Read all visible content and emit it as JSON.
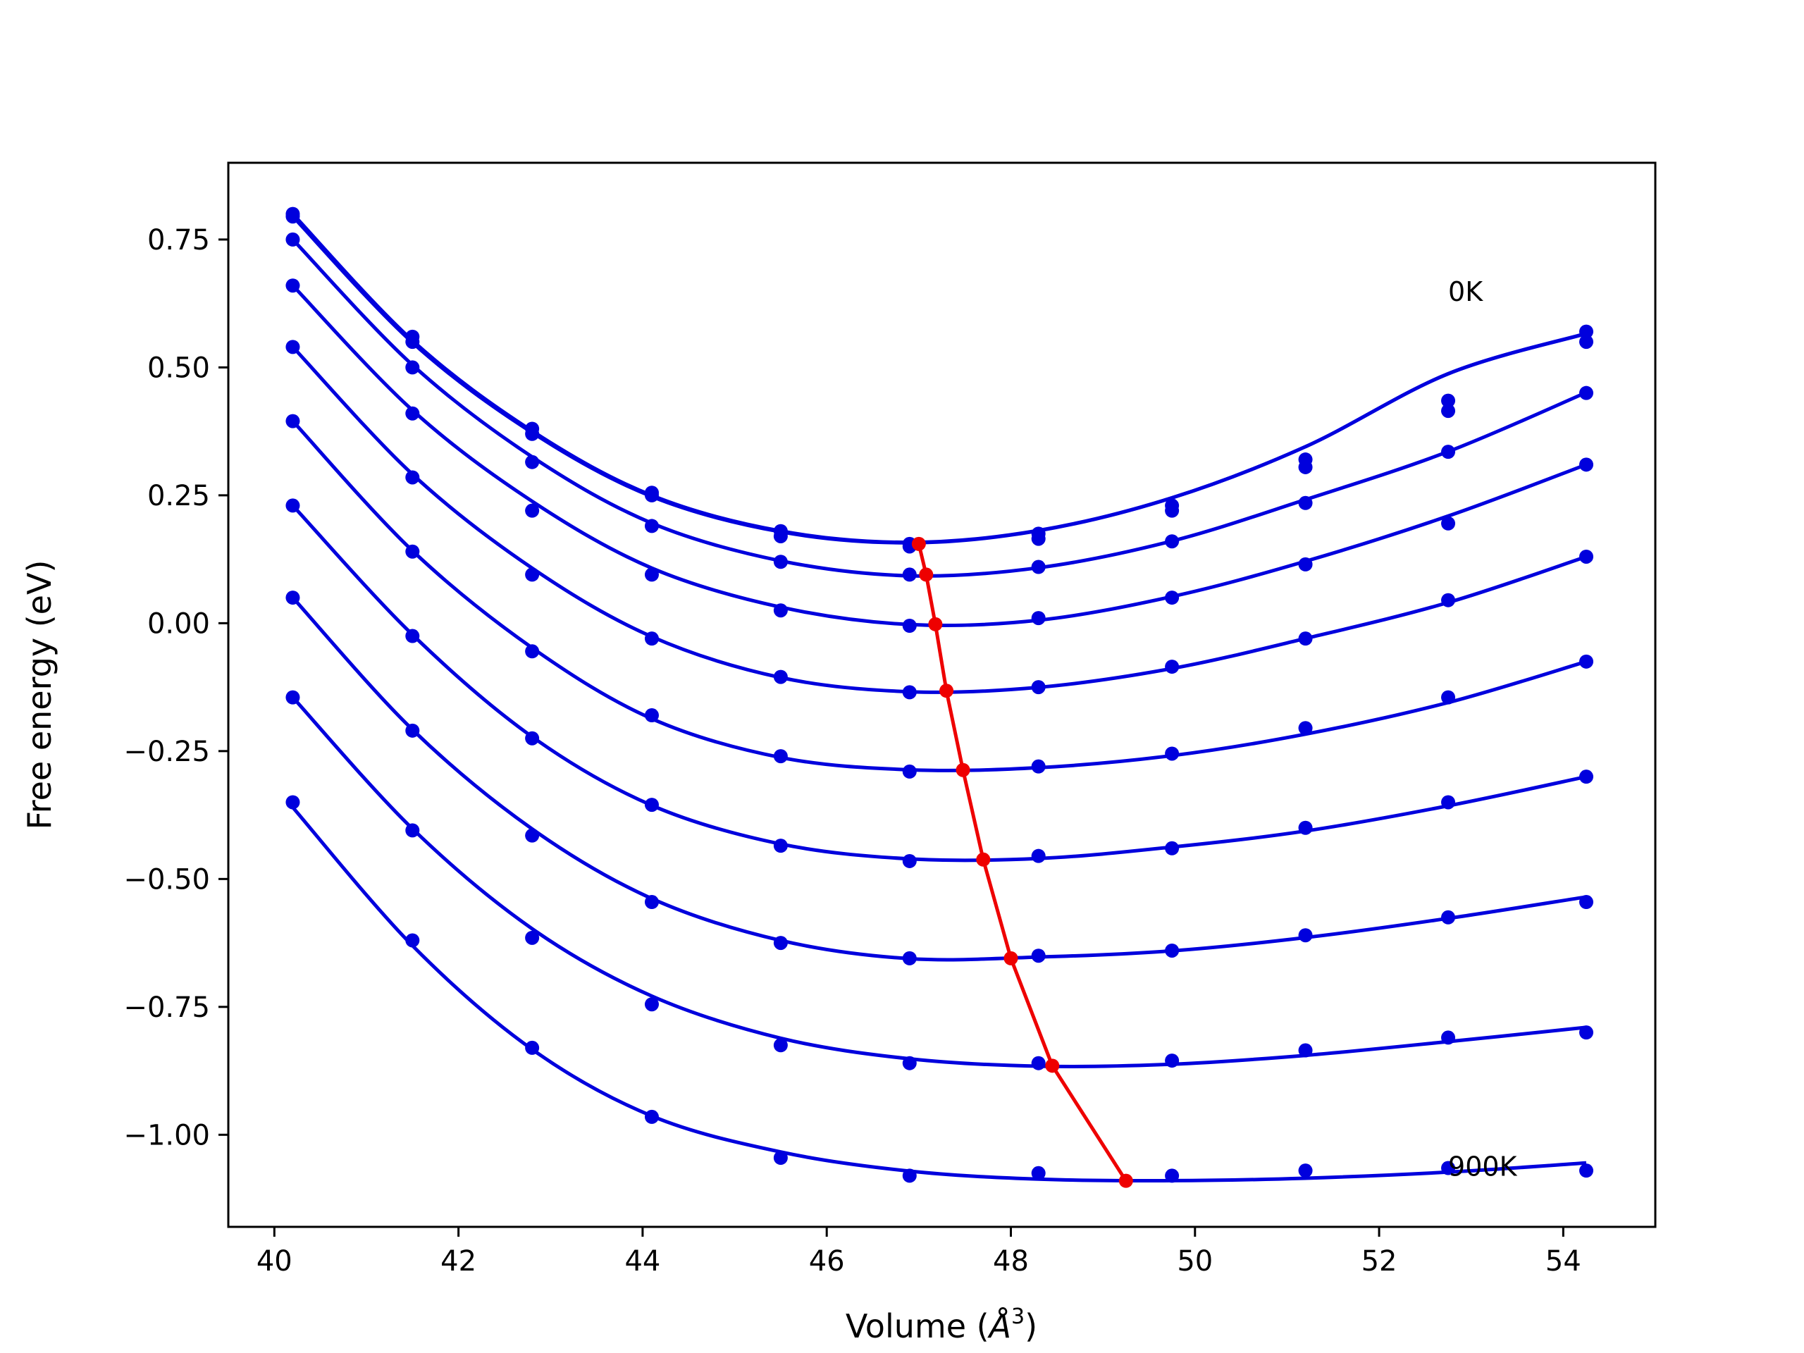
{
  "colors": {
    "series": "#0000dd",
    "minima": "#ee0000",
    "axes": "#000000",
    "background": "#ffffff"
  },
  "chart_data": {
    "type": "line",
    "xlabel": "Volume (",
    "xlabel_unit": "Å",
    "xlabel_sup": "3",
    "xlabel_end": ")",
    "ylabel": "Free energy (eV)",
    "xlim": [
      39.5,
      55.0
    ],
    "ylim": [
      -1.18,
      0.9
    ],
    "x_ticks": [
      40,
      42,
      44,
      46,
      48,
      50,
      52,
      54
    ],
    "x_tick_labels": [
      "40",
      "42",
      "44",
      "46",
      "48",
      "50",
      "52",
      "54"
    ],
    "y_ticks": [
      0.75,
      0.5,
      0.25,
      0.0,
      -0.25,
      -0.5,
      -0.75,
      -1.0
    ],
    "y_tick_labels": [
      "0.75",
      "0.50",
      "0.25",
      "0.00",
      "−0.25",
      "−0.50",
      "−0.75",
      "−1.00"
    ],
    "grid": false,
    "legend": "none",
    "annotations": [
      {
        "text": "0K",
        "x": 52.75,
        "y": 0.63
      },
      {
        "text": "900K",
        "x": 52.75,
        "y": -1.08
      }
    ],
    "x": [
      40.2,
      41.5,
      42.8,
      44.1,
      45.5,
      46.9,
      48.3,
      49.75,
      51.2,
      52.75,
      54.25
    ],
    "series": [
      {
        "points": [
          0.8,
          0.56,
          0.38,
          0.255,
          0.18,
          0.155,
          0.175,
          0.23,
          0.32,
          0.435,
          0.57
        ],
        "fit": [
          0.8,
          0.5526,
          0.3758,
          0.2498,
          0.1802,
          0.1581,
          0.1813,
          0.2452,
          0.345,
          0.4877,
          0.5664
        ]
      },
      {
        "points": [
          0.795,
          0.55,
          0.37,
          0.25,
          0.17,
          0.15,
          0.165,
          0.22,
          0.305,
          0.415,
          0.55
        ],
        "fit": [
          0.795,
          0.5486,
          0.3727,
          0.2475,
          0.1786,
          0.1572,
          0.1808,
          0.245,
          0.345,
          0.4875,
          0.566
        ]
      },
      {
        "points": [
          0.75,
          0.5,
          0.315,
          0.19,
          0.12,
          0.095,
          0.11,
          0.16,
          0.235,
          0.335,
          0.45
        ],
        "fit": [
          0.75,
          0.5048,
          0.3252,
          0.1956,
          0.1219,
          0.0927,
          0.1084,
          0.1606,
          0.2415,
          0.3355,
          0.451
        ]
      },
      {
        "points": [
          0.66,
          0.41,
          0.22,
          0.095,
          0.025,
          -0.005,
          0.01,
          0.05,
          0.115,
          0.195,
          0.31
        ],
        "fit": [
          0.66,
          0.4163,
          0.2384,
          0.1077,
          0.0314,
          -0.0027,
          0.0059,
          0.052,
          0.121,
          0.2094,
          0.31
        ]
      },
      {
        "points": [
          0.54,
          0.285,
          0.095,
          -0.03,
          -0.105,
          -0.135,
          -0.125,
          -0.085,
          -0.03,
          0.045,
          0.13
        ],
        "fit": [
          0.54,
          0.2912,
          0.1077,
          -0.0264,
          -0.1062,
          -0.134,
          -0.1254,
          -0.0886,
          -0.03,
          0.0404,
          0.13
        ]
      },
      {
        "points": [
          0.395,
          0.14,
          -0.055,
          -0.18,
          -0.26,
          -0.29,
          -0.28,
          -0.255,
          -0.205,
          -0.145,
          -0.075
        ],
        "fit": [
          0.395,
          0.1417,
          -0.0481,
          -0.1867,
          -0.2625,
          -0.2865,
          -0.2824,
          -0.2589,
          -0.2169,
          -0.1551,
          -0.075
        ]
      },
      {
        "points": [
          0.23,
          -0.025,
          -0.225,
          -0.355,
          -0.435,
          -0.465,
          -0.455,
          -0.44,
          -0.4,
          -0.35,
          -0.3
        ],
        "fit": [
          0.23,
          -0.0224,
          -0.2219,
          -0.3561,
          -0.4316,
          -0.4607,
          -0.46,
          -0.4376,
          -0.4062,
          -0.357,
          -0.3
        ]
      },
      {
        "points": [
          0.05,
          -0.21,
          -0.415,
          -0.545,
          -0.625,
          -0.655,
          -0.65,
          -0.64,
          -0.61,
          -0.575,
          -0.545
        ],
        "fit": [
          0.05,
          -0.2079,
          -0.4021,
          -0.5383,
          -0.6202,
          -0.6557,
          -0.6526,
          -0.6404,
          -0.6146,
          -0.577,
          -0.535
        ]
      },
      {
        "points": [
          -0.145,
          -0.405,
          -0.615,
          -0.745,
          -0.825,
          -0.86,
          -0.86,
          -0.855,
          -0.835,
          -0.81,
          -0.8
        ],
        "fit": [
          -0.145,
          -0.4017,
          -0.5972,
          -0.7289,
          -0.8112,
          -0.8515,
          -0.8659,
          -0.8621,
          -0.8448,
          -0.8179,
          -0.79
        ]
      },
      {
        "points": [
          -0.35,
          -0.62,
          -0.83,
          -0.965,
          -1.045,
          -1.08,
          -1.075,
          -1.08,
          -1.07,
          -1.065,
          -1.07
        ],
        "fit": [
          -0.36,
          -0.6302,
          -0.833,
          -0.9633,
          -1.0336,
          -1.071,
          -1.0867,
          -1.0897,
          -1.0849,
          -1.073,
          -1.055
        ]
      }
    ],
    "minima_line": {
      "x": [
        47.0,
        47.08,
        47.18,
        47.3,
        47.48,
        47.7,
        48.0,
        48.45,
        49.25
      ],
      "y": [
        0.155,
        0.095,
        -0.002,
        -0.132,
        -0.287,
        -0.462,
        -0.655,
        -0.865,
        -1.09
      ]
    }
  }
}
